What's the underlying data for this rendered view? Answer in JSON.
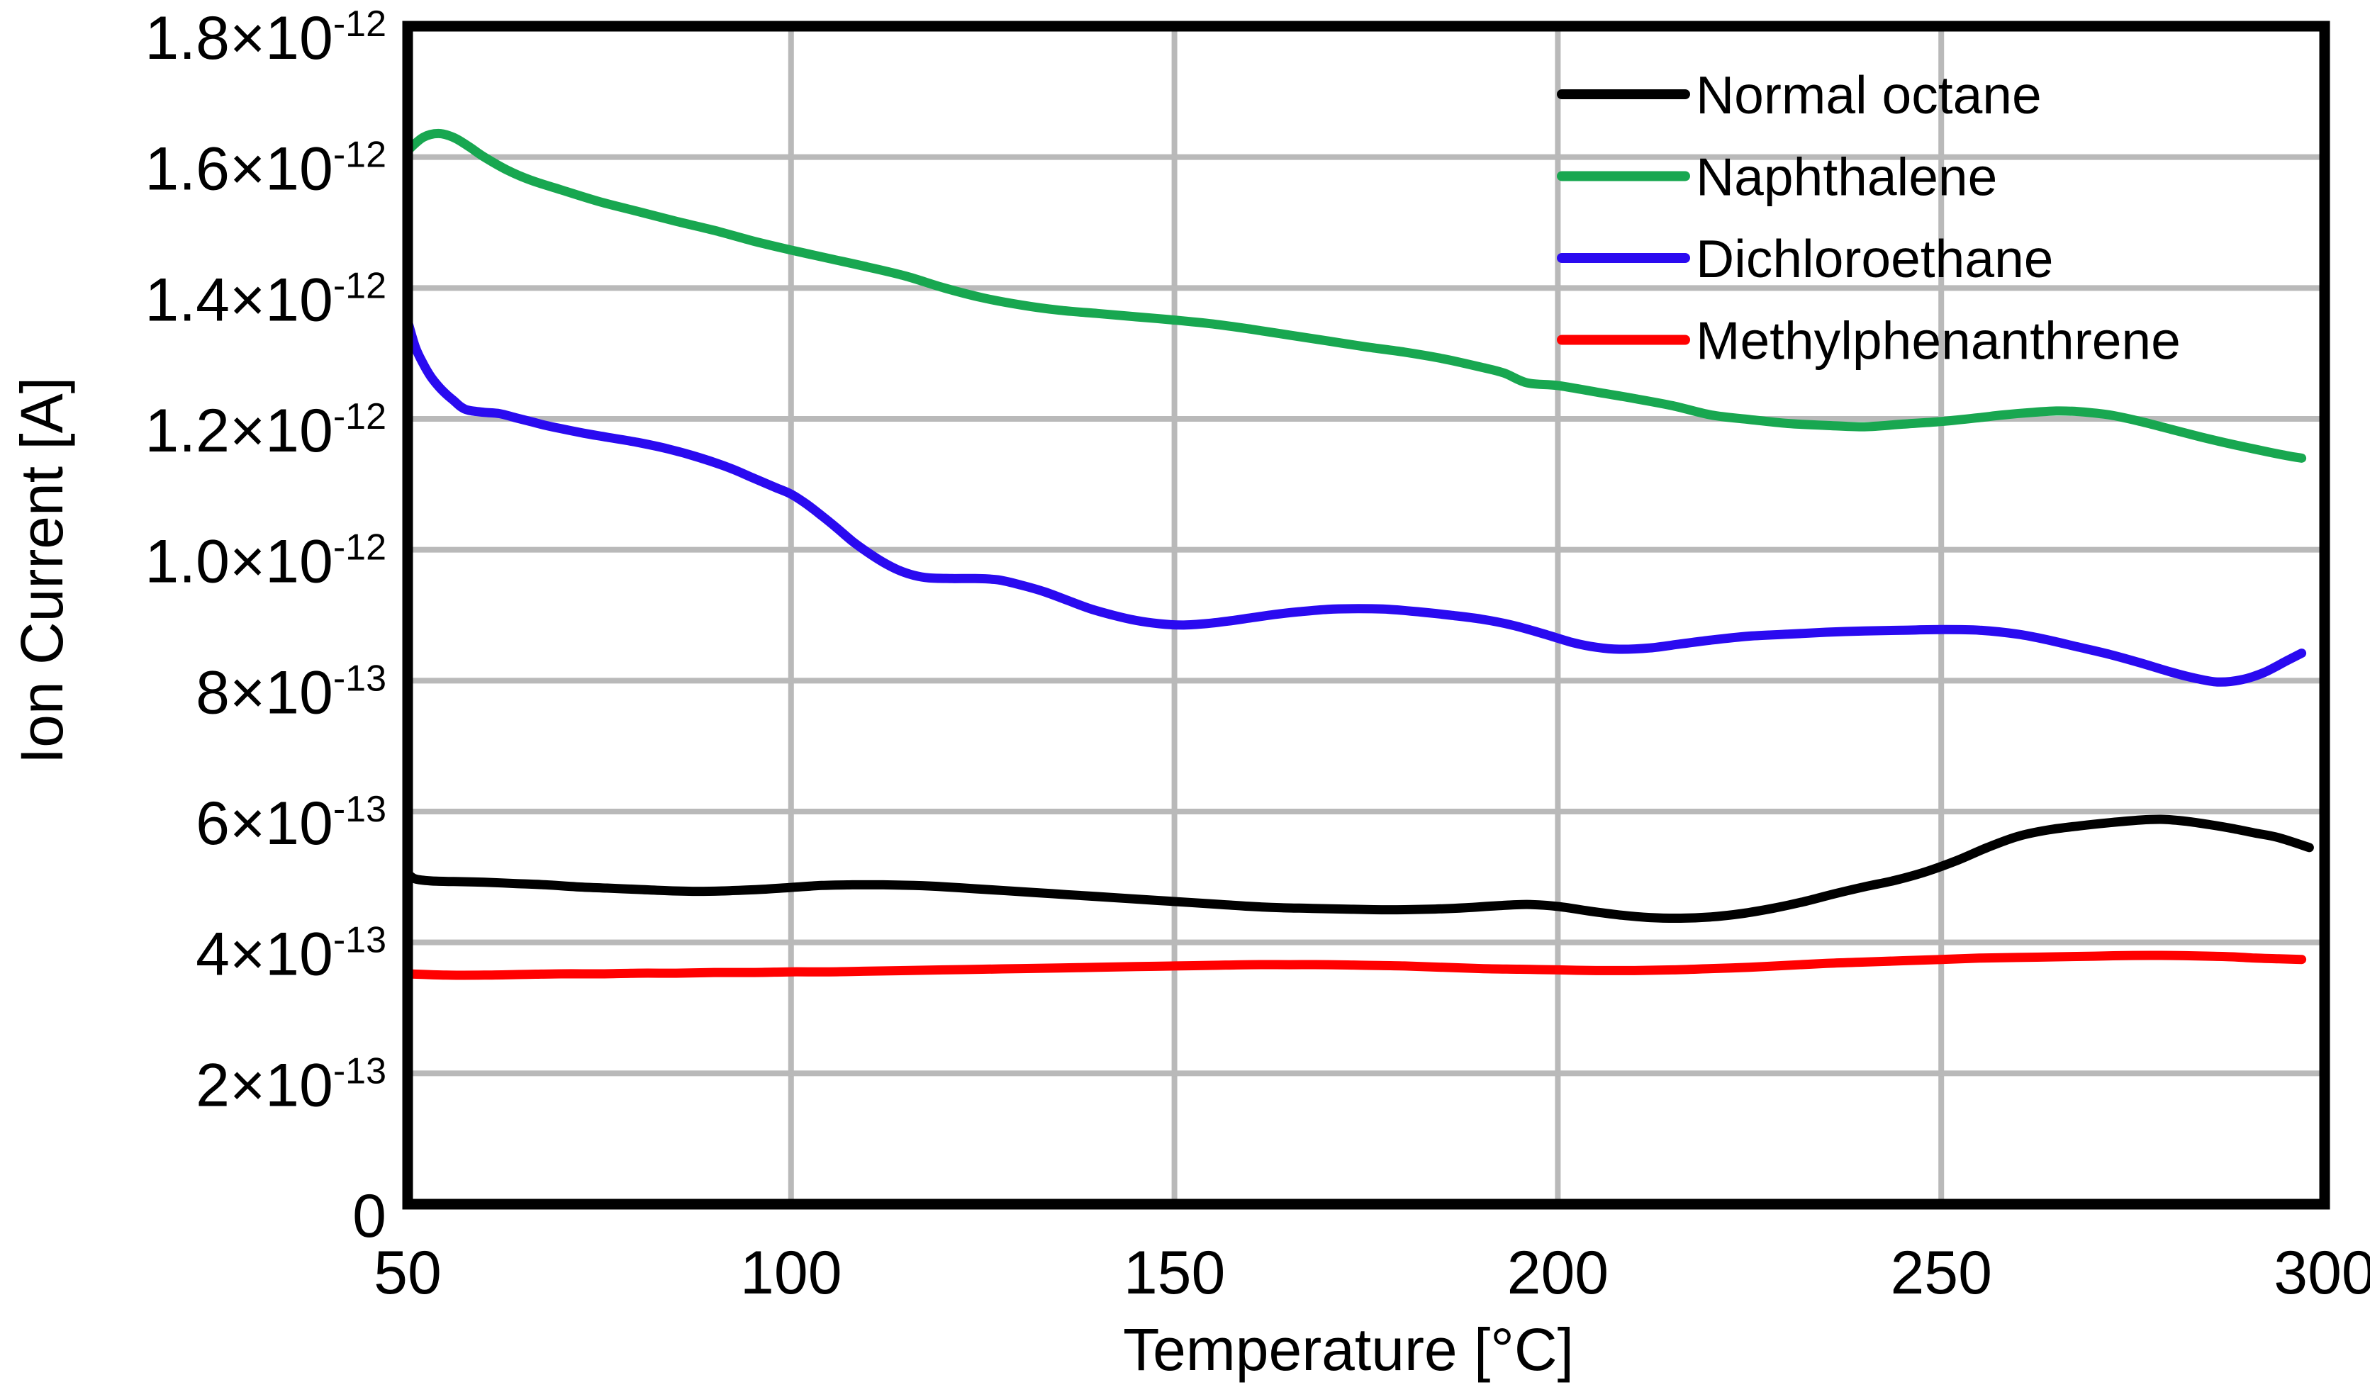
{
  "chart_data": {
    "type": "line",
    "title": "",
    "xlabel": "Temperature [°C]",
    "ylabel": "Ion Current [A]",
    "xlim": [
      50,
      300
    ],
    "ylim_e13": [
      0,
      18
    ],
    "grid": true,
    "grid_color": "#b9b9b9",
    "border_color": "#000000",
    "background_color": "#ffffff",
    "legend_position": "top-right",
    "x_ticks": [
      {
        "value": 50,
        "label": "50"
      },
      {
        "value": 100,
        "label": "100"
      },
      {
        "value": 150,
        "label": "150"
      },
      {
        "value": 200,
        "label": "200"
      },
      {
        "value": 250,
        "label": "250"
      },
      {
        "value": 300,
        "label": "300"
      }
    ],
    "y_ticks": [
      {
        "value_e13": 0,
        "main": "0",
        "exp": ""
      },
      {
        "value_e13": 2,
        "main": "2×10",
        "exp": "-13"
      },
      {
        "value_e13": 4,
        "main": "4×10",
        "exp": "-13"
      },
      {
        "value_e13": 6,
        "main": "6×10",
        "exp": "-13"
      },
      {
        "value_e13": 8,
        "main": "8×10",
        "exp": "-13"
      },
      {
        "value_e13": 10,
        "main": "1.0×10",
        "exp": "-12"
      },
      {
        "value_e13": 12,
        "main": "1.2×10",
        "exp": "-12"
      },
      {
        "value_e13": 14,
        "main": "1.4×10",
        "exp": "-12"
      },
      {
        "value_e13": 16,
        "main": "1.6×10",
        "exp": "-12"
      },
      {
        "value_e13": 18,
        "main": "1.8×10",
        "exp": "-12"
      }
    ],
    "y_unit_note": "series y values are in units of 1e-13 A",
    "series": [
      {
        "name": "Normal octane",
        "color": "#000000",
        "x": [
          50,
          51,
          53,
          56,
          60,
          64,
          68,
          72,
          76,
          80,
          84,
          88,
          92,
          96,
          100,
          104,
          108,
          112,
          116,
          120,
          124,
          128,
          132,
          136,
          140,
          144,
          148,
          152,
          156,
          160,
          164,
          168,
          172,
          176,
          180,
          184,
          188,
          192,
          196,
          200,
          204,
          208,
          212,
          216,
          220,
          224,
          228,
          232,
          236,
          240,
          244,
          248,
          252,
          256,
          260,
          264,
          268,
          272,
          276,
          279,
          282,
          285,
          288,
          291,
          294,
          298
        ],
        "y_e13": [
          5.05,
          4.97,
          4.94,
          4.93,
          4.92,
          4.9,
          4.88,
          4.85,
          4.83,
          4.81,
          4.79,
          4.78,
          4.79,
          4.81,
          4.84,
          4.87,
          4.88,
          4.88,
          4.87,
          4.85,
          4.82,
          4.79,
          4.76,
          4.73,
          4.7,
          4.67,
          4.64,
          4.61,
          4.58,
          4.55,
          4.53,
          4.52,
          4.51,
          4.5,
          4.5,
          4.51,
          4.53,
          4.56,
          4.58,
          4.55,
          4.48,
          4.42,
          4.38,
          4.37,
          4.39,
          4.44,
          4.52,
          4.62,
          4.74,
          4.85,
          4.95,
          5.08,
          5.25,
          5.45,
          5.62,
          5.72,
          5.78,
          5.83,
          5.87,
          5.88,
          5.85,
          5.8,
          5.74,
          5.67,
          5.6,
          5.45
        ]
      },
      {
        "name": "Naphthalene",
        "color": "#18a750",
        "x": [
          50,
          52,
          54,
          56,
          58,
          60,
          63,
          66,
          70,
          75,
          80,
          85,
          90,
          95,
          100,
          105,
          110,
          115,
          120,
          125,
          130,
          135,
          140,
          145,
          150,
          155,
          160,
          165,
          170,
          175,
          180,
          185,
          190,
          193,
          196,
          200,
          205,
          210,
          215,
          220,
          225,
          230,
          235,
          240,
          245,
          250,
          255,
          258,
          262,
          265,
          268,
          272,
          276,
          280,
          284,
          288,
          292,
          295,
          297
        ],
        "y_e13": [
          16.1,
          16.3,
          16.36,
          16.3,
          16.16,
          16.0,
          15.8,
          15.65,
          15.5,
          15.32,
          15.17,
          15.02,
          14.88,
          14.72,
          14.58,
          14.45,
          14.32,
          14.18,
          14.0,
          13.85,
          13.74,
          13.66,
          13.61,
          13.56,
          13.51,
          13.45,
          13.37,
          13.28,
          13.19,
          13.1,
          13.02,
          12.92,
          12.79,
          12.7,
          12.55,
          12.51,
          12.41,
          12.31,
          12.2,
          12.06,
          11.99,
          11.93,
          11.9,
          11.88,
          11.92,
          11.96,
          12.02,
          12.06,
          12.1,
          12.12,
          12.11,
          12.06,
          11.96,
          11.84,
          11.72,
          11.61,
          11.51,
          11.44,
          11.4
        ]
      },
      {
        "name": "Dichloroethane",
        "color": "#2a0af0",
        "x": [
          50,
          51,
          52,
          53,
          54,
          55,
          56,
          57,
          58,
          60,
          62,
          64,
          66,
          68,
          70,
          73,
          76,
          80,
          84,
          88,
          92,
          95,
          98,
          100,
          102,
          104,
          106,
          108,
          110,
          112,
          114,
          116,
          118,
          121,
          124,
          127,
          130,
          133,
          136,
          139,
          142,
          145,
          148,
          151,
          154,
          157,
          160,
          163,
          166,
          170,
          174,
          178,
          182,
          186,
          190,
          194,
          198,
          202,
          205,
          208,
          212,
          216,
          220,
          225,
          230,
          235,
          240,
          245,
          250,
          255,
          260,
          264,
          268,
          272,
          276,
          280,
          283,
          286,
          289,
          292,
          295,
          297
        ],
        "y_e13": [
          13.5,
          13.1,
          12.85,
          12.65,
          12.5,
          12.38,
          12.28,
          12.18,
          12.13,
          12.1,
          12.08,
          12.02,
          11.96,
          11.9,
          11.85,
          11.78,
          11.72,
          11.64,
          11.54,
          11.41,
          11.25,
          11.1,
          10.95,
          10.85,
          10.7,
          10.52,
          10.33,
          10.13,
          9.96,
          9.81,
          9.69,
          9.61,
          9.57,
          9.56,
          9.56,
          9.54,
          9.46,
          9.36,
          9.23,
          9.1,
          9.0,
          8.92,
          8.87,
          8.85,
          8.87,
          8.91,
          8.96,
          9.01,
          9.05,
          9.09,
          9.1,
          9.09,
          9.05,
          9.0,
          8.94,
          8.85,
          8.72,
          8.58,
          8.51,
          8.48,
          8.5,
          8.56,
          8.62,
          8.68,
          8.71,
          8.74,
          8.76,
          8.77,
          8.78,
          8.77,
          8.71,
          8.62,
          8.51,
          8.4,
          8.27,
          8.13,
          8.04,
          7.98,
          8.01,
          8.12,
          8.3,
          8.42
        ]
      },
      {
        "name": "Methylphenanthrene",
        "color": "#ff0000",
        "x": [
          50,
          55,
          60,
          65,
          70,
          75,
          80,
          85,
          90,
          95,
          100,
          105,
          110,
          115,
          120,
          125,
          130,
          135,
          140,
          145,
          150,
          155,
          160,
          165,
          170,
          175,
          180,
          185,
          190,
          195,
          200,
          205,
          210,
          215,
          220,
          225,
          230,
          235,
          240,
          245,
          250,
          255,
          260,
          265,
          270,
          275,
          280,
          285,
          288,
          291,
          294,
          297
        ],
        "y_e13": [
          3.52,
          3.5,
          3.5,
          3.51,
          3.52,
          3.52,
          3.53,
          3.53,
          3.54,
          3.54,
          3.55,
          3.55,
          3.56,
          3.57,
          3.58,
          3.59,
          3.6,
          3.61,
          3.62,
          3.63,
          3.64,
          3.65,
          3.66,
          3.66,
          3.66,
          3.65,
          3.64,
          3.62,
          3.6,
          3.59,
          3.58,
          3.57,
          3.57,
          3.58,
          3.6,
          3.62,
          3.65,
          3.68,
          3.7,
          3.72,
          3.74,
          3.76,
          3.77,
          3.78,
          3.79,
          3.8,
          3.8,
          3.79,
          3.78,
          3.76,
          3.75,
          3.74
        ]
      }
    ]
  }
}
